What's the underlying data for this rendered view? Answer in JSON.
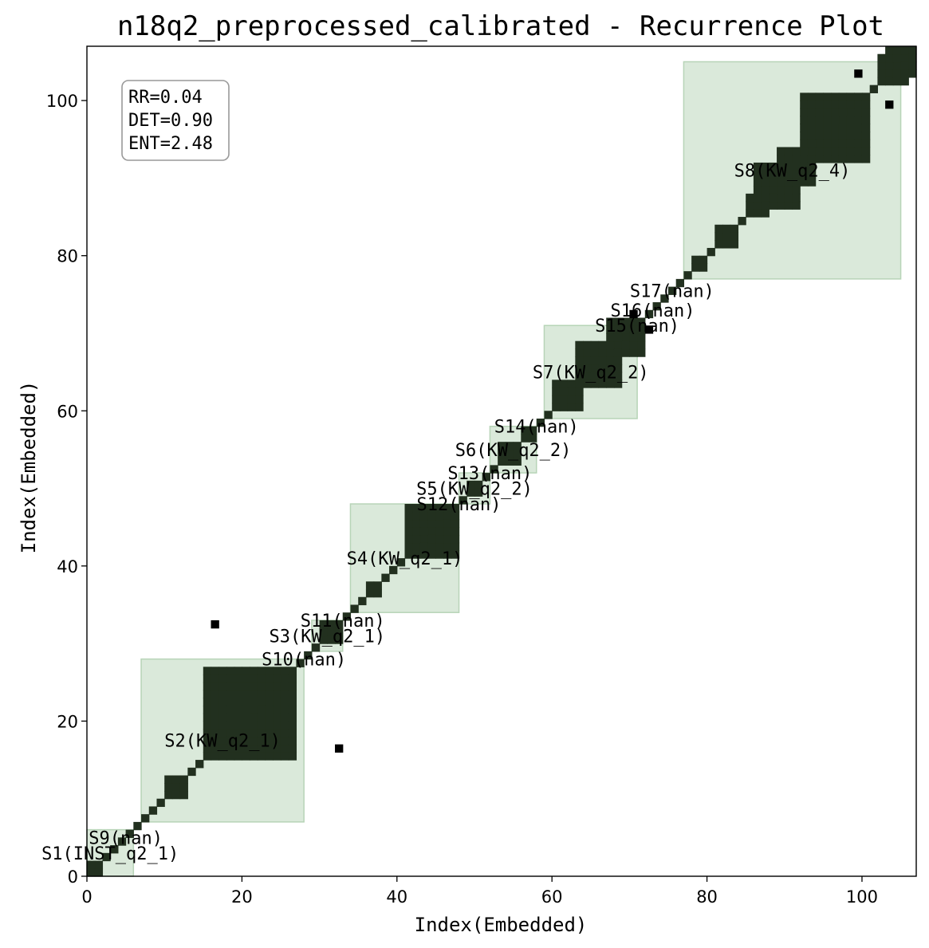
{
  "chart_data": {
    "type": "heatmap",
    "title": "n18q2_preprocessed_calibrated - Recurrence Plot",
    "xlabel": "Index(Embedded)",
    "ylabel": "Index(Embedded)",
    "xlim": [
      0,
      107
    ],
    "ylim": [
      0,
      107
    ],
    "grid": false,
    "xticks": [
      0,
      20,
      40,
      60,
      80,
      100
    ],
    "yticks": [
      0,
      20,
      40,
      60,
      80,
      100
    ],
    "stats": [
      "RR=0.04",
      "DET=0.90",
      "ENT=2.48"
    ],
    "colors": {
      "recurrence": "#22301f",
      "recurrence_edge": "#000000",
      "segment_fill": "#d9e8d9",
      "segment_stroke": "#b4d2b4"
    },
    "segments": [
      {
        "label": "S1(INST_q2_1)",
        "start": 0,
        "end": 6
      },
      {
        "label": "S9(nan)",
        "start": 3,
        "end": 7
      },
      {
        "label": "S2(KW_q2_1)",
        "start": 7,
        "end": 28
      },
      {
        "label": "S10(nan)",
        "start": 27,
        "end": 29
      },
      {
        "label": "S3(KW_q2_1)",
        "start": 29,
        "end": 33
      },
      {
        "label": "S11(nan)",
        "start": 32,
        "end": 34
      },
      {
        "label": "S4(KW_q2_1)",
        "start": 34,
        "end": 48
      },
      {
        "label": "S12(nan)",
        "start": 47,
        "end": 49
      },
      {
        "label": "S5(KW_q2_2)",
        "start": 48,
        "end": 52
      },
      {
        "label": "S13(nan)",
        "start": 51,
        "end": 53
      },
      {
        "label": "S6(KW_q2_2)",
        "start": 52,
        "end": 58
      },
      {
        "label": "S14(nan)",
        "start": 57,
        "end": 59
      },
      {
        "label": "S7(KW_q2_2)",
        "start": 59,
        "end": 71
      },
      {
        "label": "S15(nan)",
        "start": 70,
        "end": 72
      },
      {
        "label": "S16(nan)",
        "start": 72,
        "end": 74
      },
      {
        "label": "S17(nan)",
        "start": 74,
        "end": 77
      },
      {
        "label": "S8(KW_q2_4)",
        "start": 77,
        "end": 105
      }
    ],
    "recurrence_blocks": [
      [
        0,
        2,
        0,
        2
      ],
      [
        10,
        13,
        10,
        13
      ],
      [
        15,
        27,
        15,
        27
      ],
      [
        18,
        25,
        18,
        25
      ],
      [
        30,
        33,
        30,
        33
      ],
      [
        36,
        38,
        36,
        38
      ],
      [
        41,
        48,
        41,
        48
      ],
      [
        43,
        48,
        43,
        48
      ],
      [
        49,
        51,
        49,
        51
      ],
      [
        53,
        56,
        53,
        56
      ],
      [
        56,
        58,
        56,
        58
      ],
      [
        60,
        64,
        60,
        64
      ],
      [
        63,
        69,
        63,
        69
      ],
      [
        67,
        72,
        67,
        72
      ],
      [
        78,
        80,
        78,
        80
      ],
      [
        81,
        84,
        81,
        84
      ],
      [
        85,
        88,
        85,
        88
      ],
      [
        86,
        92,
        86,
        92
      ],
      [
        89,
        94,
        89,
        94
      ],
      [
        92,
        101,
        92,
        101
      ],
      [
        94,
        101,
        94,
        101
      ],
      [
        102,
        106,
        102,
        106
      ],
      [
        103,
        107,
        103,
        107
      ]
    ],
    "recurrence_points": [
      [
        16,
        32
      ],
      [
        32,
        16
      ],
      [
        4,
        4
      ],
      [
        5,
        5
      ],
      [
        6,
        6
      ],
      [
        7,
        7
      ],
      [
        8,
        8
      ],
      [
        9,
        9
      ],
      [
        14,
        14
      ],
      [
        28,
        28
      ],
      [
        29,
        29
      ],
      [
        34,
        34
      ],
      [
        35,
        35
      ],
      [
        39,
        39
      ],
      [
        40,
        40
      ],
      [
        52,
        52
      ],
      [
        59,
        59
      ],
      [
        73,
        73
      ],
      [
        74,
        74
      ],
      [
        75,
        75
      ],
      [
        76,
        76
      ],
      [
        77,
        77
      ],
      [
        80,
        80
      ],
      [
        84,
        84
      ],
      [
        88,
        88
      ],
      [
        101,
        101
      ],
      [
        102,
        102
      ],
      [
        70,
        72
      ],
      [
        72,
        70
      ],
      [
        103,
        99
      ],
      [
        99,
        103
      ],
      [
        104,
        102
      ],
      [
        102,
        104
      ]
    ]
  }
}
